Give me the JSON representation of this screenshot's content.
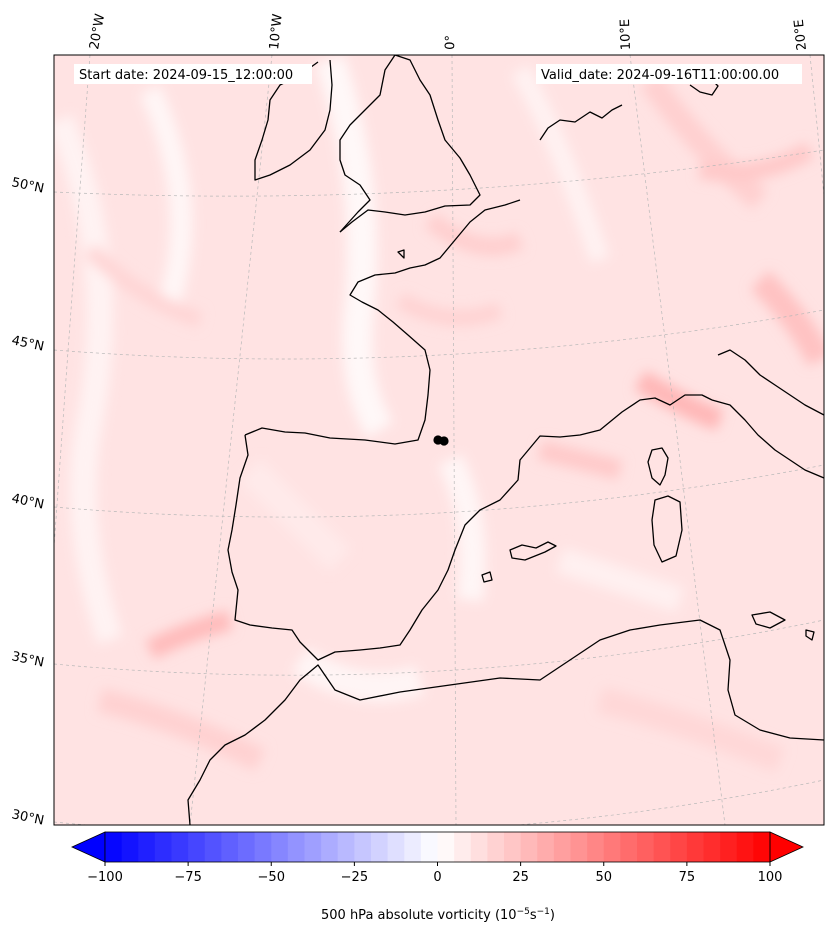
{
  "header": {
    "start_date": "Start date: 2024-09-15_12:00:00",
    "valid_date": "Valid_date: 2024-09-16T11:00:00.00"
  },
  "longitude_labels": [
    "20°W",
    "10°W",
    "0°",
    "10°E",
    "20°E"
  ],
  "latitude_labels": [
    "50°N",
    "45°N",
    "40°N",
    "35°N",
    "30°N"
  ],
  "colorbar": {
    "ticks": [
      "−100",
      "−75",
      "−50",
      "−25",
      "0",
      "25",
      "50",
      "75",
      "100"
    ],
    "range": [
      -100,
      100
    ],
    "negative_color": "#0000ff",
    "positive_color": "#ff0000",
    "label": "500 hPa absolute vorticity (10",
    "label_exp1": "−5",
    "label_mid": "s",
    "label_exp2": "−1",
    "label_end": ")"
  },
  "colors": {
    "field_base": "#ffe4e4",
    "coastline": "#000000",
    "marker": "#000000"
  }
}
